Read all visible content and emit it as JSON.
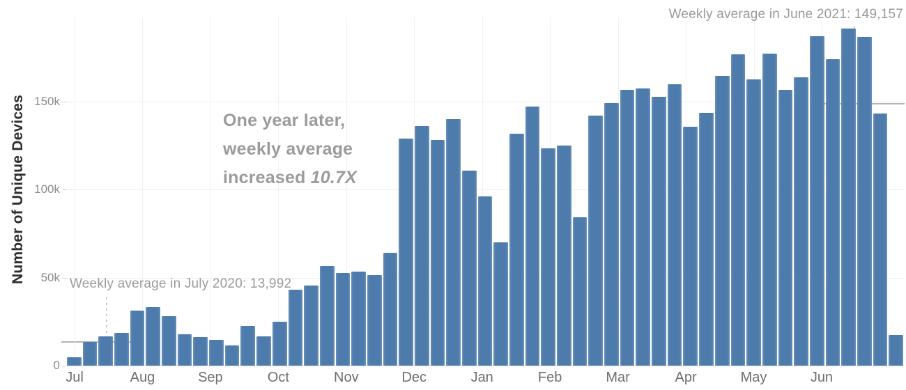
{
  "chart_data": {
    "type": "bar",
    "title": "",
    "xlabel": "",
    "ylabel": "Number of Unique Devices",
    "categories_months": [
      "Jul",
      "Aug",
      "Sep",
      "Oct",
      "Nov",
      "Dec",
      "Jan",
      "Feb",
      "Mar",
      "Apr",
      "May",
      "Jun"
    ],
    "y_ticks": [
      {
        "label": "0",
        "value": 0
      },
      {
        "label": "50k",
        "value": 50000
      },
      {
        "label": "100k",
        "value": 100000
      },
      {
        "label": "150k",
        "value": 150000
      }
    ],
    "ylim": [
      0,
      196000
    ],
    "grid": true,
    "legend": "none",
    "bar_color": "#4d7bab",
    "bar_edge_color": "#6b92ba",
    "weekly_values": [
      4700,
      13400,
      16600,
      18600,
      31200,
      33200,
      28000,
      17800,
      16200,
      14600,
      11500,
      22500,
      16600,
      24900,
      43000,
      45500,
      56600,
      52600,
      53400,
      51400,
      64000,
      129000,
      136000,
      128000,
      140000,
      110500,
      96000,
      70000,
      131500,
      147000,
      123500,
      125000,
      84000,
      142000,
      149000,
      156500,
      157500,
      152500,
      159500,
      135500,
      143500,
      164500,
      176500,
      162500,
      177000,
      156500,
      163500,
      187000,
      174000,
      191500,
      186500,
      143000,
      17500
    ],
    "reference_lines": [
      {
        "label": "Weekly average in July 2020: 13,992",
        "value": 13992
      },
      {
        "label": "Weekly average in June 2021: 149,157",
        "value": 149157
      }
    ]
  },
  "annotations": {
    "july2020": "Weekly average in July 2020: 13,992",
    "june2021": "Weekly average in June 2021: 149,157",
    "center": {
      "line1": "One year later,",
      "line2": "weekly average",
      "line3_prefix": "increased ",
      "line3_emphasis": "10.7X"
    }
  }
}
